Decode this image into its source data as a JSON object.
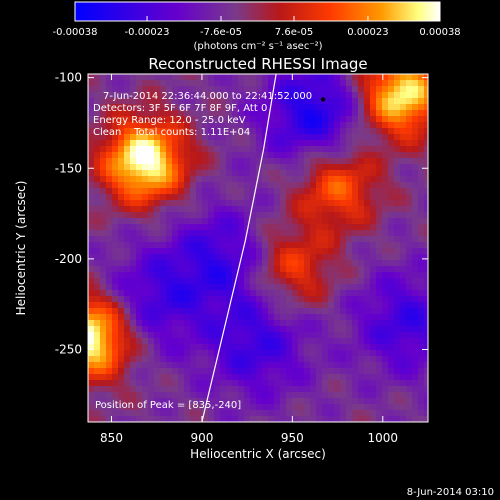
{
  "chart_data": {
    "type": "heatmap",
    "title": "Reconstructed RHESSI Image",
    "xlabel": "Heliocentric X (arcsec)",
    "ylabel": "Heliocentric Y (arcsec)",
    "xlim": [
      837,
      1025
    ],
    "ylim": [
      -290,
      -98
    ],
    "x_ticks": [
      850,
      900,
      950,
      1000
    ],
    "y_ticks": [
      -100,
      -150,
      -200,
      -250
    ],
    "colorbar": {
      "range": [
        -0.00038,
        0.00038
      ],
      "tick_labels": [
        "-0.00038",
        "-0.00023",
        "-7.6e-05",
        "7.6e-05",
        "0.00023",
        "0.00038"
      ],
      "tick_values": [
        -0.00038,
        -0.00023,
        -7.6e-05,
        7.6e-05,
        0.00023,
        0.00038
      ],
      "units_label": "(photons cm⁻² s⁻¹ asec⁻²)",
      "colormap": [
        "#0000ff",
        "#6600cc",
        "#7a3a8a",
        "#b81818",
        "#ff3a00",
        "#ff9a00",
        "#ffff80",
        "#ffffff"
      ]
    },
    "annotations": [
      "7-Jun-2014 22:36:44.000 to 22:41:52.000",
      "Detectors: 3F 5F 6F 7F 8F 9F, Att 0",
      "Energy Range: 12.0 - 25.0 keV",
      "Clean    Total counts: 1.11E+04"
    ],
    "peak_label": "Position of Peak = [835,-240]",
    "limb_points": [
      [
        900,
        -290
      ],
      [
        912,
        -240
      ],
      [
        924,
        -190
      ],
      [
        934,
        -140
      ],
      [
        941,
        -98
      ]
    ],
    "marker": [
      967,
      -112
    ],
    "features": [
      {
        "type": "hot",
        "x": 868,
        "y": -146,
        "amp": 1.0
      },
      {
        "type": "hot",
        "x": 838,
        "y": -243,
        "amp": 1.0
      },
      {
        "type": "hot",
        "x": 1010,
        "y": -110,
        "amp": 0.9
      },
      {
        "type": "hot",
        "x": 975,
        "y": -160,
        "amp": 0.55
      },
      {
        "type": "hot",
        "x": 950,
        "y": -205,
        "amp": 0.45
      },
      {
        "type": "cold",
        "x": 962,
        "y": -120,
        "amp": 0.8
      },
      {
        "type": "cold",
        "x": 910,
        "y": -200,
        "amp": 0.6
      },
      {
        "type": "cold",
        "x": 873,
        "y": -223,
        "amp": 0.55
      },
      {
        "type": "cold",
        "x": 930,
        "y": -248,
        "amp": 0.6
      },
      {
        "type": "cold",
        "x": 1013,
        "y": -235,
        "amp": 0.6
      }
    ]
  },
  "timestamp": "8-Jun-2014 03:10"
}
